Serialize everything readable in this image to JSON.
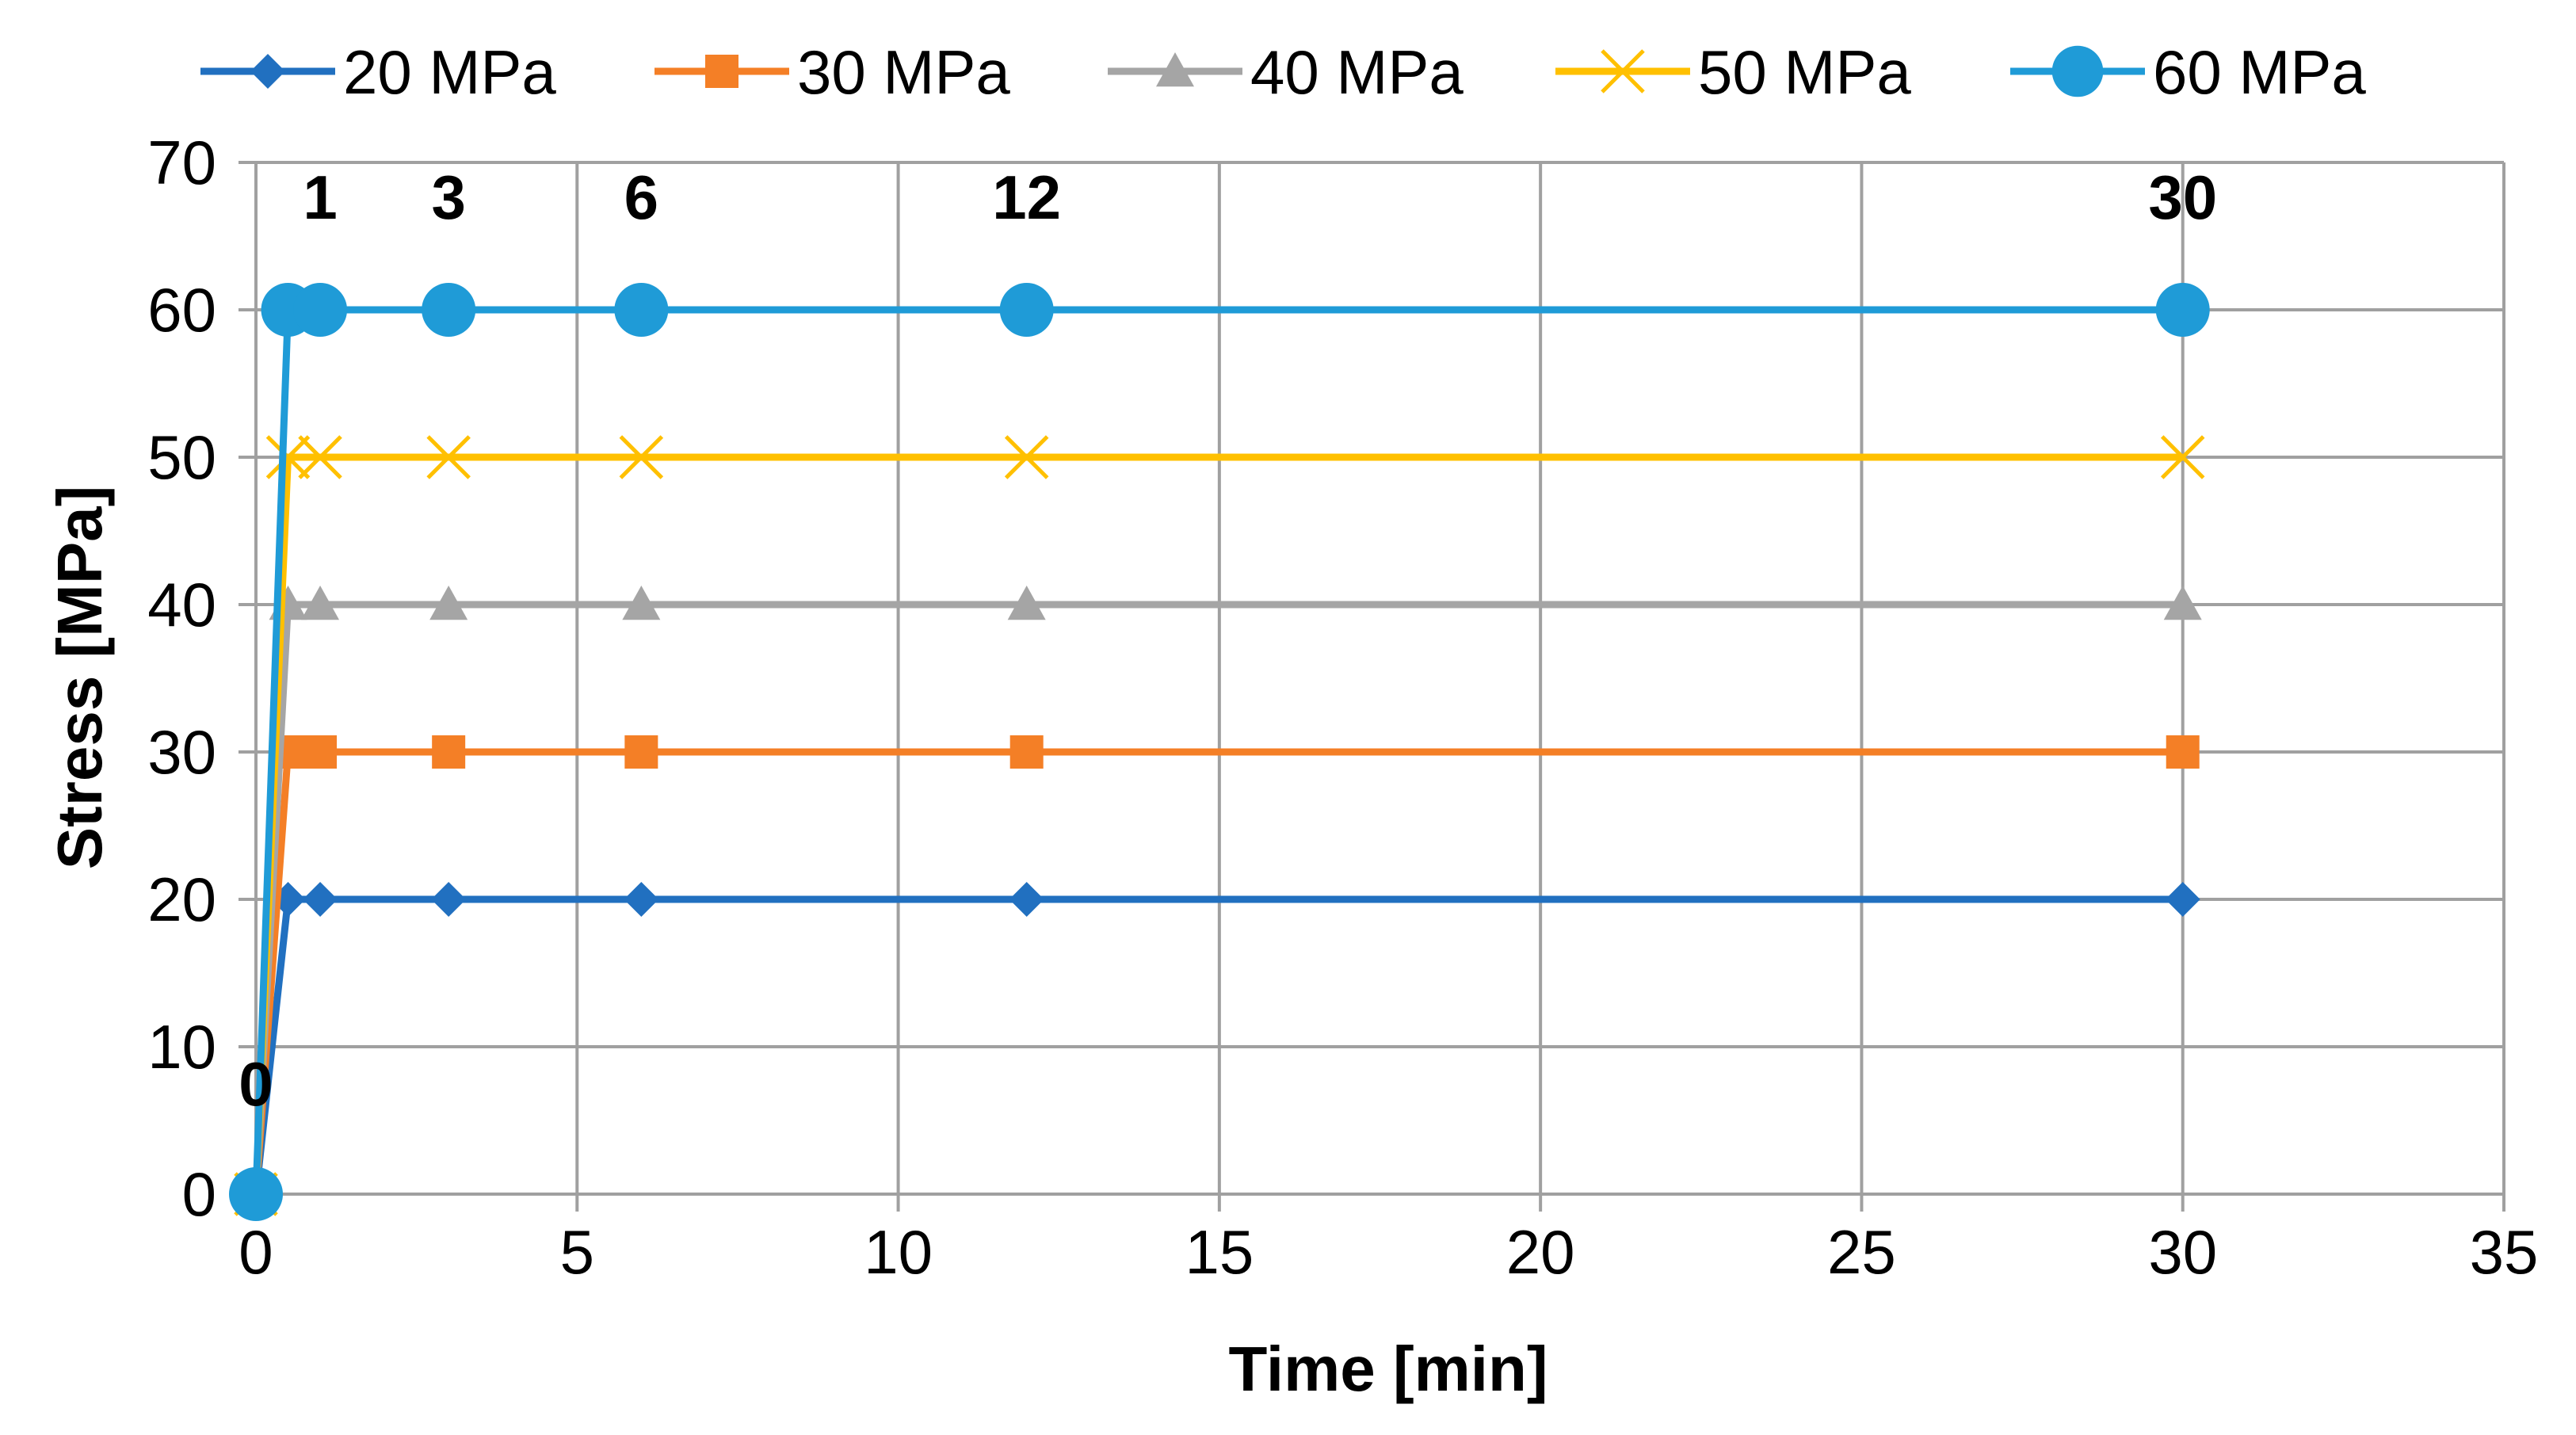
{
  "chart_data": {
    "type": "line",
    "title": "",
    "xlabel": "Time [min]",
    "ylabel": "Stress [MPa]",
    "xlim": [
      0,
      35
    ],
    "ylim": [
      0,
      70
    ],
    "x_ticks": [
      0,
      5,
      10,
      15,
      20,
      25,
      30,
      35
    ],
    "y_ticks": [
      0,
      10,
      20,
      30,
      40,
      50,
      60,
      70
    ],
    "grid": true,
    "legend_position": "top",
    "x": [
      0,
      0.5,
      1,
      3,
      6,
      12,
      30
    ],
    "series": [
      {
        "name": "20 MPa",
        "color": "#2170C0",
        "marker": "diamond",
        "values": [
          0,
          20,
          20,
          20,
          20,
          20,
          20
        ]
      },
      {
        "name": "30 MPa",
        "color": "#F47F26",
        "marker": "square",
        "values": [
          0,
          30,
          30,
          30,
          30,
          30,
          30
        ]
      },
      {
        "name": "40 MPa",
        "color": "#A5A5A5",
        "marker": "triangle",
        "values": [
          0,
          40,
          40,
          40,
          40,
          40,
          40
        ]
      },
      {
        "name": "50 MPa",
        "color": "#FFC000",
        "marker": "x",
        "values": [
          0,
          50,
          50,
          50,
          50,
          50,
          50
        ]
      },
      {
        "name": "60 MPa",
        "color": "#1F9BD7",
        "marker": "circle",
        "values": [
          0,
          60,
          60,
          60,
          60,
          60,
          60
        ]
      }
    ],
    "annotations": [
      {
        "text": "0",
        "x": 0,
        "y": 0
      },
      {
        "text": "1",
        "x": 1,
        "y": 60
      },
      {
        "text": "3",
        "x": 3,
        "y": 60
      },
      {
        "text": "6",
        "x": 6,
        "y": 60
      },
      {
        "text": "12",
        "x": 12,
        "y": 60
      },
      {
        "text": "30",
        "x": 30,
        "y": 60
      }
    ]
  }
}
